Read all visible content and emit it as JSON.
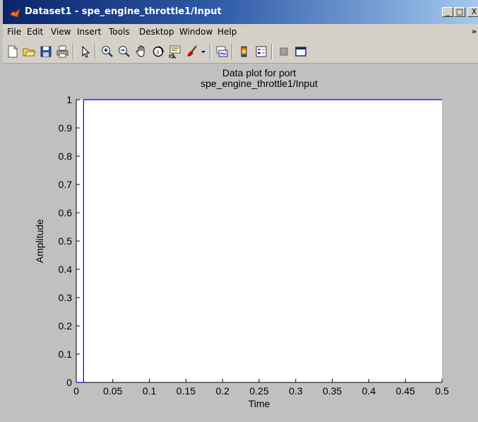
{
  "window": {
    "title": "Dataset1 - spe_engine_throttle1/Input",
    "controls": [
      "_",
      "□",
      "X"
    ]
  },
  "menu": {
    "items": [
      "File",
      "Edit",
      "View",
      "Insert",
      "Tools",
      "Desktop",
      "Window",
      "Help"
    ],
    "overflow": "»"
  },
  "toolbar": {
    "tools": [
      "new-figure",
      "open-file",
      "save",
      "print",
      "select-arrow",
      "zoom-in",
      "zoom-out",
      "pan",
      "rotate-3d",
      "data-cursor",
      "brush",
      "brush-dropdown",
      "link-plot",
      "colorbar",
      "legend",
      "hide-plot-tools",
      "show-plot-tools"
    ]
  },
  "chart_data": {
    "type": "line",
    "title": [
      "Data plot for port",
      "spe_engine_throttle1/Input"
    ],
    "xlabel": "Time",
    "ylabel": "Amplitude",
    "xlim": [
      0,
      0.5
    ],
    "ylim": [
      0,
      1
    ],
    "xticks": [
      "0",
      "0.05",
      "0.1",
      "0.15",
      "0.2",
      "0.25",
      "0.3",
      "0.35",
      "0.4",
      "0.45",
      "0.5"
    ],
    "yticks": [
      "0",
      "0.1",
      "0.2",
      "0.3",
      "0.4",
      "0.5",
      "0.6",
      "0.7",
      "0.8",
      "0.9",
      "1"
    ],
    "grid": false,
    "series": [
      {
        "x": [
          0,
          0.01,
          0.01,
          0.5
        ],
        "y": [
          0,
          0,
          1,
          1
        ],
        "color": "#0000ff"
      }
    ]
  }
}
